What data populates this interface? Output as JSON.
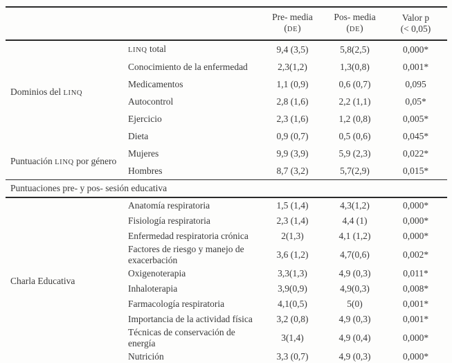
{
  "table": {
    "headers": [
      {
        "line1": "Pre- media",
        "line2": "(DE)"
      },
      {
        "line1": "Pos- media",
        "line2": "(DE)"
      },
      {
        "line1": "Valor p",
        "line2": "(< 0,05)"
      }
    ],
    "groups": {
      "dominios": "Dominios del LINQ",
      "genero": "Puntuación LINQ por género",
      "charla": "Charla Educativa"
    },
    "section_header": "Puntuaciones pre- y pos- sesión educativa",
    "linq_rows": [
      {
        "label": "LINQ total",
        "pre": "9,4 (3,5)",
        "pos": "5,8(2,5)",
        "p": "0,000*"
      },
      {
        "label": "Conocimiento de la enfermedad",
        "pre": "2,3(1,2)",
        "pos": "1,3(0,8)",
        "p": "0,001*"
      },
      {
        "label": "Medicamentos",
        "pre": "1,1 (0,9)",
        "pos": "0,6 (0,7)",
        "p": "0,095"
      },
      {
        "label": "Autocontrol",
        "pre": "2,8 (1,6)",
        "pos": "2,2 (1,1)",
        "p": "0,05*"
      },
      {
        "label": "Ejercicio",
        "pre": "2,3 (1,6)",
        "pos": "1,2 (0,8)",
        "p": "0,005*"
      },
      {
        "label": "Dieta",
        "pre": "0,9 (0,7)",
        "pos": "0,5 (0,6)",
        "p": "0,045*"
      },
      {
        "label": "Mujeres",
        "pre": "9,9 (3,9)",
        "pos": "5,9 (2,3)",
        "p": "0,022*"
      },
      {
        "label": "Hombres",
        "pre": "8,7 (3,2)",
        "pos": "5,7(2,9)",
        "p": "0,015*"
      }
    ],
    "charla_rows": [
      {
        "label": "Anatomía respiratoria",
        "pre": "1,5 (1,4)",
        "pos": "4,3(1,2)",
        "p": "0,000*"
      },
      {
        "label": "Fisiología respiratoria",
        "pre": "2,3 (1,4)",
        "pos": "4,4 (1)",
        "p": "0,000*"
      },
      {
        "label": "Enfermedad respiratoria crónica",
        "pre": "2(1,3)",
        "pos": "4,1 (1,2)",
        "p": "0,000*"
      },
      {
        "label": "Factores de riesgo y manejo de exacerbación",
        "pre": "3,6 (1,2)",
        "pos": "4,7(0,6)",
        "p": "0,002*"
      },
      {
        "label": "Oxigenoterapia",
        "pre": "3,3(1,3)",
        "pos": "4,9 (0,3)",
        "p": "0,011*"
      },
      {
        "label": "Inhaloterapia",
        "pre": "3,9(0,9)",
        "pos": "4,9(0,3)",
        "p": "0,008*"
      },
      {
        "label": "Farmacología respiratoria",
        "pre": "4,1(0,5)",
        "pos": "5(0)",
        "p": "0,001*"
      },
      {
        "label": "Importancia de la actividad física",
        "pre": "3,2 (0,8)",
        "pos": "4,9 (0,3)",
        "p": "0,001*"
      },
      {
        "label": "Técnicas de conservación de energía",
        "pre": "3(1,4)",
        "pos": "4,9 (0,4)",
        "p": "0,000*"
      },
      {
        "label": "Nutrición",
        "pre": "3,3 (0,7)",
        "pos": "4,9 (0,3)",
        "p": "0,000*"
      }
    ]
  }
}
